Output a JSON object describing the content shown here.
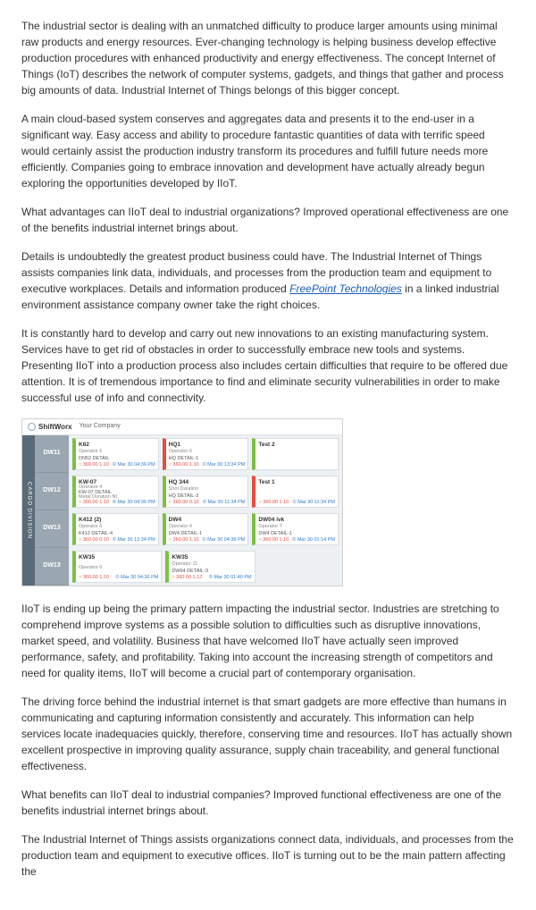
{
  "paragraphs": {
    "p1": "The industrial sector is dealing with an unmatched difficulty to produce larger amounts using minimal raw products and energy resources. Ever-changing technology is helping business develop effective production procedures with enhanced productivity and energy effectiveness. The concept Internet of Things (IoT) describes the network of computer systems, gadgets, and things that gather and process big amounts of data. Industrial Internet of Things belongs of this bigger concept.",
    "p2": "A main cloud-based system conserves and aggregates data and presents it to the end-user in a significant way. Easy access and ability to procedure fantastic quantities of data with terrific speed would certainly assist the production industry transform its procedures and fulfill future needs more efficiently. Companies going to embrace innovation and development have actually already begun exploring the opportunities developed by IIoT.",
    "p3": "What advantages can IIoT deal to industrial organizations? Improved operational effectiveness are one of the benefits industrial internet brings about.",
    "p4a": "Details is undoubtedly the greatest product business could have. The Industrial Internet of Things assists companies link data, individuals, and processes from the production team and equipment to executive workplaces. Details and information produced ",
    "p4_link": "FreePoint Technologies",
    "p4b": " in a linked industrial environment assistance company owner take the right choices.",
    "p5": "It is constantly hard to develop and carry out new innovations to an existing manufacturing system. Services have to get rid of obstacles in order to successfully embrace new tools and systems. Presenting IIoT into a production process also includes certain difficulties that require to be offered due attention. It is of tremendous importance to find and eliminate security vulnerabilities in order to make successful use of info and connectivity.",
    "p6": "IIoT is ending up being the primary pattern impacting the industrial sector. Industries are stretching to comprehend improve systems as a possible solution to difficulties such as disruptive innovations, market speed, and volatility. Business that have welcomed IIoT have actually seen improved performance, safety, and profitability. Taking into account the increasing strength of competitors and need for quality items, IIoT will become a crucial part of contemporary organisation.",
    "p7": "The driving force behind the industrial internet is that smart gadgets are more effective than humans in communicating and capturing information consistently and accurately. This information can help services locate inadequacies quickly, therefore, conserving time and resources. IIoT has actually shown excellent prospective in improving quality assurance, supply chain traceability, and general functional effectiveness.",
    "p8": "What benefits can IIoT deal to industrial companies? Improved functional effectiveness are one of the benefits industrial internet brings about.",
    "p9": "The Industrial Internet of Things assists organizations connect data, individuals, and processes from the production team and equipment to executive offices. IIoT is turning out to be the main pattern affecting the"
  },
  "dashboard": {
    "logo_text": "ShiftWorx",
    "company": "Your Company",
    "side_tab": "CARGO DIVISION",
    "rows": [
      {
        "label": "DW11",
        "cards": [
          {
            "color": "g",
            "title": "K62",
            "op": "Operator 6",
            "line": "DN52 DETAIL",
            "sub": "",
            "num": "○ 360.00 1.10",
            "time": "© Mar 30 04:36 PM"
          },
          {
            "color": "r",
            "title": "HQ1",
            "op": "Operator 6",
            "line": "HQ DETAIL-1",
            "sub": "",
            "num": "○ 360.00 1.10",
            "time": "© Mar 30 13:34 PM"
          },
          {
            "color": "g",
            "title": "Test 2",
            "op": "",
            "line": "",
            "sub": "",
            "num": "",
            "time": ""
          }
        ]
      },
      {
        "label": "DW12",
        "cards": [
          {
            "color": "g",
            "title": "KW-07",
            "op": "Operator 4",
            "line": "KW-07 DETAIL",
            "sub": "Metal Duration fld",
            "num": "○ 360.00 1.10",
            "time": "© Mar 30 04:36 PM"
          },
          {
            "color": "g",
            "title": "HQ 344",
            "op": "Shot Duration",
            "line": "HQ DETAIL-3",
            "sub": "",
            "num": "○ 360.00 0.10",
            "time": "© Mar 30 11:34 PM"
          },
          {
            "color": "r",
            "title": "Test 1",
            "op": "",
            "line": "",
            "sub": "",
            "num": "○ 360.00 1.10",
            "time": "© Mar 30 11:34 PM"
          }
        ]
      },
      {
        "label": "DW13",
        "cards": [
          {
            "color": "g",
            "title": "K412 (2)",
            "op": "Operator 6",
            "line": "K412 DETAIL-4",
            "sub": "",
            "num": "○ 360.00 0.10",
            "time": "© Mar 30 13:34 PM"
          },
          {
            "color": "g",
            "title": "DW4",
            "op": "Operator 4",
            "line": "DW4 DETAIL-1",
            "sub": "",
            "num": "○ 360.00 1.10",
            "time": "© Mar 30 04:36 PM"
          },
          {
            "color": "g",
            "title": "DW04 ivk",
            "op": "Operator 7",
            "line": "DW4 DETAIL-1",
            "sub": "",
            "num": "○ 360.00 1.10",
            "time": "© Mar 30 01:14 PM"
          }
        ]
      },
      {
        "label": "DW13",
        "cards": [
          {
            "color": "g",
            "title": "KW35",
            "op": "Operator 6",
            "line": "",
            "sub": "",
            "num": "○ 360.00 1.10",
            "time": "© Mar 30 04:36 PM"
          },
          {
            "color": "g",
            "title": "KW35",
            "op": "Operator 11",
            "line": "DW64 DETAIL-3",
            "sub": "",
            "num": "○ 360.00 1.12",
            "time": "© Mar 30 01:40 PM"
          },
          null
        ]
      }
    ]
  }
}
